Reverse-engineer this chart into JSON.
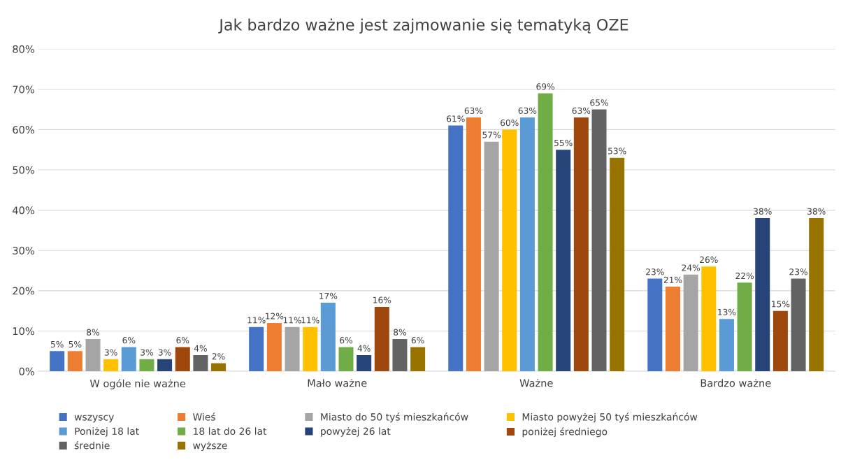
{
  "chart_data": {
    "type": "bar",
    "title": "Jak bardzo ważne jest zajmowanie się tematyką OZE",
    "categories": [
      "W ogóle nie ważne",
      "Mało ważne",
      "Ważne",
      "Bardzo ważne"
    ],
    "series": [
      {
        "name": "wszyscy",
        "color": "#4472c4",
        "values": [
          5,
          11,
          61,
          23
        ],
        "value_labels": [
          "5%",
          "11%",
          "61%",
          "23%"
        ]
      },
      {
        "name": "Wieś",
        "color": "#ed7d31",
        "values": [
          5,
          12,
          63,
          21
        ],
        "value_labels": [
          "5%",
          "12%",
          "63%",
          "21%"
        ]
      },
      {
        "name": "Miasto do 50 tyś mieszkańców",
        "color": "#a5a5a5",
        "values": [
          8,
          11,
          57,
          24
        ],
        "value_labels": [
          "8%",
          "11%",
          "57%",
          "24%"
        ]
      },
      {
        "name": "Miasto powyżej 50 tyś mieszkańców",
        "color": "#ffc000",
        "values": [
          3,
          11,
          60,
          26
        ],
        "value_labels": [
          "3%",
          "11%",
          "60%",
          "26%"
        ]
      },
      {
        "name": "Poniżej 18 lat",
        "color": "#5b9bd5",
        "values": [
          6,
          17,
          63,
          13
        ],
        "value_labels": [
          "6%",
          "17%",
          "63%",
          "13%"
        ]
      },
      {
        "name": "18 lat do 26 lat",
        "color": "#70ad47",
        "values": [
          3,
          6,
          69,
          22
        ],
        "value_labels": [
          "3%",
          "6%",
          "69%",
          "22%"
        ]
      },
      {
        "name": "powyżej 26 lat",
        "color": "#264478",
        "values": [
          3,
          4,
          55,
          38
        ],
        "value_labels": [
          "3%",
          "4%",
          "55%",
          "38%"
        ]
      },
      {
        "name": "poniżej średniego",
        "color": "#9e480e",
        "values": [
          6,
          16,
          63,
          15
        ],
        "value_labels": [
          "6%",
          "16%",
          "63%",
          "15%"
        ]
      },
      {
        "name": "średnie",
        "color": "#636363",
        "values": [
          4,
          8,
          65,
          23
        ],
        "value_labels": [
          "4%",
          "8%",
          "65%",
          "23%"
        ]
      },
      {
        "name": "wyższe",
        "color": "#997300",
        "values": [
          2,
          6,
          53,
          38
        ],
        "value_labels": [
          "2%",
          "6%",
          "53%",
          "38%"
        ]
      }
    ],
    "ylim": [
      0,
      80
    ],
    "yticks": [
      {
        "value": 0,
        "label": "0%"
      },
      {
        "value": 10,
        "label": "10%"
      },
      {
        "value": 20,
        "label": "20%"
      },
      {
        "value": 30,
        "label": "30%"
      },
      {
        "value": 40,
        "label": "40%"
      },
      {
        "value": 50,
        "label": "50%"
      },
      {
        "value": 60,
        "label": "60%"
      },
      {
        "value": 70,
        "label": "70%"
      },
      {
        "value": 80,
        "label": "80%"
      }
    ],
    "grid": "y",
    "legend": "bottom"
  }
}
